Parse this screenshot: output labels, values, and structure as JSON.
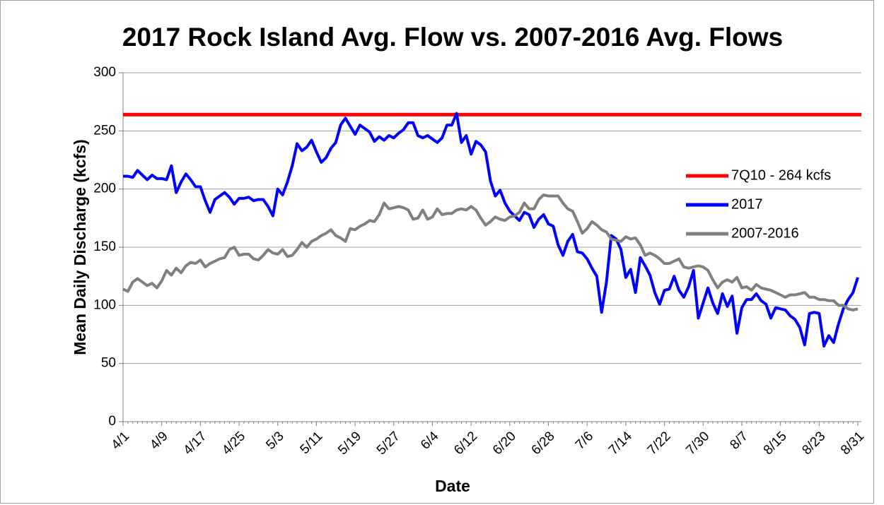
{
  "chart_data": {
    "type": "line",
    "title": "2017 Rock Island Avg. Flow vs. 2007-2016 Avg. Flows",
    "x_label": "Date",
    "y_label": "Mean Daily Discharge (kcfs)",
    "categories": [
      "4/1",
      null,
      null,
      null,
      null,
      null,
      null,
      null,
      "4/9",
      null,
      null,
      null,
      null,
      null,
      null,
      null,
      "4/17",
      null,
      null,
      null,
      null,
      null,
      null,
      null,
      "4/25",
      null,
      null,
      null,
      null,
      null,
      null,
      null,
      "5/3",
      null,
      null,
      null,
      null,
      null,
      null,
      null,
      "5/11",
      null,
      null,
      null,
      null,
      null,
      null,
      null,
      "5/19",
      null,
      null,
      null,
      null,
      null,
      null,
      null,
      "5/27",
      null,
      null,
      null,
      null,
      null,
      null,
      null,
      "6/4",
      null,
      null,
      null,
      null,
      null,
      null,
      null,
      "6/12",
      null,
      null,
      null,
      null,
      null,
      null,
      null,
      "6/20",
      null,
      null,
      null,
      null,
      null,
      null,
      null,
      "6/28",
      null,
      null,
      null,
      null,
      null,
      null,
      null,
      "7/6",
      null,
      null,
      null,
      null,
      null,
      null,
      null,
      "7/14",
      null,
      null,
      null,
      null,
      null,
      null,
      null,
      "7/22",
      null,
      null,
      null,
      null,
      null,
      null,
      null,
      "7/30",
      null,
      null,
      null,
      null,
      null,
      null,
      null,
      "8/7",
      null,
      null,
      null,
      null,
      null,
      null,
      null,
      "8/15",
      null,
      null,
      null,
      null,
      null,
      null,
      null,
      "8/23",
      null,
      null,
      null,
      null,
      null,
      null,
      null,
      "8/31"
    ],
    "reference_line": {
      "name": "7Q10 - 264 kcfs",
      "color": "#ff0000",
      "value": 264
    },
    "series": [
      {
        "name": "2017",
        "color": "#0000ff",
        "values": [
          211,
          211,
          210,
          216,
          212,
          208,
          212,
          209,
          209,
          208,
          220,
          197,
          206,
          213,
          208,
          202,
          202,
          190,
          180,
          191,
          194,
          197,
          193,
          187,
          192,
          192,
          193,
          190,
          191,
          191,
          185,
          177,
          200,
          195,
          206,
          220,
          239,
          233,
          236,
          242,
          232,
          223,
          227,
          235,
          240,
          255,
          261,
          254,
          247,
          255,
          252,
          249,
          241,
          245,
          242,
          246,
          244,
          248,
          251,
          257,
          257,
          246,
          244,
          246,
          243,
          240,
          244,
          255,
          255,
          265,
          240,
          246,
          230,
          241,
          238,
          232,
          207,
          194,
          199,
          188,
          181,
          177,
          173,
          180,
          178,
          167,
          174,
          178,
          170,
          168,
          152,
          143,
          155,
          161,
          146,
          145,
          140,
          132,
          125,
          94,
          120,
          160,
          157,
          148,
          124,
          131,
          111,
          141,
          134,
          126,
          111,
          101,
          113,
          114,
          125,
          113,
          107,
          116,
          130,
          89,
          102,
          115,
          102,
          93,
          110,
          99,
          108,
          76,
          98,
          105,
          105,
          110,
          104,
          101,
          89,
          98,
          97,
          96,
          91,
          88,
          81,
          66,
          93,
          94,
          93,
          65,
          74,
          68,
          84,
          97,
          105,
          111,
          124
        ]
      },
      {
        "name": "2007-2016",
        "color": "#808080",
        "values": [
          114,
          112,
          120,
          123,
          120,
          117,
          119,
          115,
          121,
          130,
          126,
          132,
          128,
          134,
          137,
          136,
          139,
          133,
          136,
          138,
          140,
          141,
          148,
          150,
          143,
          144,
          144,
          140,
          139,
          143,
          148,
          145,
          144,
          148,
          142,
          143,
          148,
          154,
          150,
          155,
          157,
          160,
          162,
          165,
          160,
          158,
          155,
          166,
          165,
          168,
          170,
          173,
          172,
          178,
          188,
          183,
          184,
          185,
          184,
          182,
          174,
          175,
          182,
          174,
          176,
          183,
          178,
          179,
          179,
          182,
          183,
          182,
          185,
          182,
          175,
          169,
          172,
          176,
          174,
          173,
          176,
          177,
          180,
          188,
          183,
          183,
          191,
          195,
          194,
          194,
          194,
          188,
          183,
          181,
          172,
          162,
          166,
          172,
          169,
          165,
          163,
          157,
          156,
          155,
          159,
          157,
          158,
          152,
          143,
          145,
          143,
          140,
          136,
          136,
          138,
          140,
          133,
          132,
          133,
          134,
          133,
          130,
          122,
          115,
          120,
          122,
          120,
          124,
          115,
          116,
          113,
          118,
          115,
          114,
          113,
          111,
          109,
          107,
          109,
          109,
          110,
          111,
          107,
          107,
          105,
          105,
          104,
          104,
          100,
          100,
          97,
          96,
          97
        ]
      }
    ],
    "ylim": [
      0,
      300
    ],
    "yticks": [
      0,
      50,
      100,
      150,
      200,
      250,
      300
    ],
    "grid": true,
    "legend": "right"
  }
}
